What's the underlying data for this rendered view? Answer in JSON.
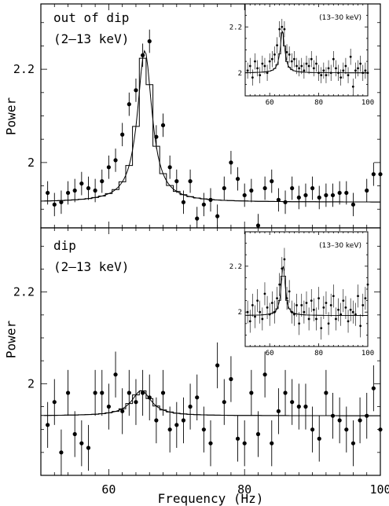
{
  "chart_data": {
    "type": "scatter",
    "xlabel": "Frequency (Hz)",
    "ylabel": "Power",
    "xlim": [
      50,
      100
    ],
    "x_ticks": [
      "60",
      "80",
      "100"
    ],
    "panels": [
      {
        "annotation_line1": "out of dip",
        "annotation_line2": "(2–13 keV)",
        "ylim": [
          1.86,
          2.34
        ],
        "y_ticks": [
          "2",
          "2.2"
        ],
        "ylabel": "Power",
        "x": [
          51,
          52,
          53,
          54,
          55,
          56,
          57,
          58,
          59,
          60,
          61,
          62,
          63,
          64,
          65,
          66,
          67,
          68,
          69,
          70,
          71,
          72,
          73,
          74,
          75,
          76,
          77,
          78,
          79,
          80,
          81,
          82,
          83,
          84,
          85,
          86,
          87,
          88,
          89,
          90,
          91,
          92,
          93,
          94,
          95,
          96,
          97,
          98,
          99,
          100
        ],
        "y": [
          1.935,
          1.91,
          1.915,
          1.935,
          1.94,
          1.955,
          1.945,
          1.94,
          1.96,
          1.99,
          2.005,
          2.06,
          2.125,
          2.155,
          2.23,
          2.26,
          2.055,
          2.08,
          1.99,
          1.96,
          1.915,
          1.96,
          1.88,
          1.91,
          1.92,
          1.885,
          1.945,
          2.0,
          1.965,
          1.93,
          1.94,
          1.865,
          1.945,
          1.96,
          1.92,
          1.915,
          1.945,
          1.925,
          1.93,
          1.945,
          1.925,
          1.93,
          1.93,
          1.935,
          1.935,
          1.91,
          1.855,
          1.94,
          1.975,
          1.975
        ],
        "err": [
          0.025,
          0.025,
          0.025,
          0.025,
          0.025,
          0.025,
          0.025,
          0.025,
          0.025,
          0.025,
          0.025,
          0.025,
          0.025,
          0.025,
          0.025,
          0.025,
          0.025,
          0.025,
          0.025,
          0.025,
          0.025,
          0.025,
          0.025,
          0.025,
          0.025,
          0.025,
          0.025,
          0.025,
          0.025,
          0.025,
          0.025,
          0.025,
          0.025,
          0.025,
          0.025,
          0.025,
          0.025,
          0.025,
          0.025,
          0.025,
          0.025,
          0.025,
          0.025,
          0.025,
          0.025,
          0.025,
          0.025,
          0.025,
          0.025,
          0.025
        ],
        "model": {
          "baseline": 1.915,
          "amp": 0.325,
          "center": 65.3,
          "width": 2.6
        },
        "inset": {
          "label": "(13–30 keV)",
          "xlim": [
            50,
            100
          ],
          "ylim": [
            1.9,
            2.3
          ],
          "x_ticks": [
            "60",
            "80",
            "100"
          ],
          "y_ticks": [
            "2",
            "2.2"
          ],
          "x": [
            51,
            52,
            53,
            54,
            55,
            56,
            57,
            58,
            59,
            60,
            61,
            62,
            63,
            64,
            65,
            66,
            67,
            68,
            69,
            70,
            71,
            72,
            73,
            74,
            75,
            76,
            77,
            78,
            79,
            80,
            81,
            82,
            83,
            84,
            85,
            86,
            87,
            88,
            89,
            90,
            91,
            92,
            93,
            94,
            95,
            96,
            97,
            98,
            99,
            100
          ],
          "y": [
            2.01,
            2.03,
            1.98,
            2.05,
            2.02,
            1.99,
            2.04,
            2.03,
            2.0,
            2.05,
            2.06,
            2.08,
            2.12,
            2.19,
            2.2,
            2.19,
            2.09,
            2.08,
            2.05,
            2.06,
            2.03,
            2.02,
            2.03,
            2.01,
            2.04,
            2.03,
            2.06,
            2.02,
            2.04,
            2.0,
            1.99,
            2.01,
            1.99,
            2.02,
            2.0,
            2.06,
            2.02,
            2.0,
            1.98,
            2.01,
            2.03,
            1.99,
            2.07,
            1.94,
            2.01,
            2.02,
            2.04,
            2.0,
            2.01,
            2.0
          ],
          "err": [
            0.035,
            0.035,
            0.035,
            0.035,
            0.035,
            0.035,
            0.035,
            0.035,
            0.035,
            0.035,
            0.035,
            0.035,
            0.035,
            0.035,
            0.035,
            0.035,
            0.035,
            0.035,
            0.035,
            0.035,
            0.035,
            0.035,
            0.035,
            0.035,
            0.035,
            0.035,
            0.035,
            0.035,
            0.035,
            0.035,
            0.035,
            0.035,
            0.035,
            0.035,
            0.035,
            0.035,
            0.035,
            0.035,
            0.035,
            0.035,
            0.035,
            0.035,
            0.035,
            0.035,
            0.035,
            0.035,
            0.035,
            0.035,
            0.035,
            0.035
          ],
          "model": {
            "baseline": 2.0,
            "amp": 0.18,
            "center": 65.2,
            "width": 2.2
          }
        }
      },
      {
        "annotation_line1": "dip",
        "annotation_line2": "(2–13 keV)",
        "ylim": [
          1.8,
          2.34
        ],
        "y_ticks": [
          "2",
          "2.2"
        ],
        "ylabel": "Power",
        "x": [
          51,
          52,
          53,
          54,
          55,
          56,
          57,
          58,
          59,
          60,
          61,
          62,
          63,
          64,
          65,
          66,
          67,
          68,
          69,
          70,
          71,
          72,
          73,
          74,
          75,
          76,
          77,
          78,
          79,
          80,
          81,
          82,
          83,
          84,
          85,
          86,
          87,
          88,
          89,
          90,
          91,
          92,
          93,
          94,
          95,
          96,
          97,
          98,
          99,
          100
        ],
        "y": [
          1.91,
          1.96,
          1.85,
          1.98,
          1.89,
          1.87,
          1.86,
          1.98,
          1.98,
          1.95,
          2.02,
          1.94,
          1.98,
          1.96,
          1.98,
          1.97,
          1.92,
          1.98,
          1.9,
          1.91,
          1.92,
          1.95,
          1.97,
          1.9,
          1.87,
          2.04,
          1.96,
          2.01,
          1.88,
          1.87,
          1.98,
          1.89,
          2.02,
          1.87,
          1.94,
          1.98,
          1.96,
          1.95,
          1.95,
          1.9,
          1.88,
          1.98,
          1.93,
          1.92,
          1.9,
          1.87,
          1.92,
          1.93,
          1.99,
          1.9
        ],
        "err": [
          0.05,
          0.05,
          0.05,
          0.05,
          0.05,
          0.05,
          0.05,
          0.05,
          0.05,
          0.05,
          0.05,
          0.05,
          0.05,
          0.05,
          0.05,
          0.05,
          0.05,
          0.05,
          0.05,
          0.05,
          0.05,
          0.05,
          0.05,
          0.05,
          0.05,
          0.05,
          0.05,
          0.05,
          0.05,
          0.05,
          0.05,
          0.05,
          0.05,
          0.05,
          0.05,
          0.05,
          0.05,
          0.05,
          0.05,
          0.05,
          0.05,
          0.05,
          0.05,
          0.05,
          0.05,
          0.05,
          0.05,
          0.05,
          0.05,
          0.05
        ],
        "model": {
          "baseline": 1.93,
          "amp": 0.055,
          "center": 64.8,
          "width": 3.5
        },
        "inset": {
          "label": "(13–30 keV)",
          "xlim": [
            50,
            100
          ],
          "ylim": [
            1.85,
            2.35
          ],
          "x_ticks": [
            "60",
            "80",
            "100"
          ],
          "y_ticks": [
            "2",
            "2.2"
          ],
          "x": [
            51,
            52,
            53,
            54,
            55,
            56,
            57,
            58,
            59,
            60,
            61,
            62,
            63,
            64,
            65,
            66,
            67,
            68,
            69,
            70,
            71,
            72,
            73,
            74,
            75,
            76,
            77,
            78,
            79,
            80,
            81,
            82,
            83,
            84,
            85,
            86,
            87,
            88,
            89,
            90,
            91,
            92,
            93,
            94,
            95,
            96,
            97,
            98,
            99,
            100
          ],
          "y": [
            2.0,
            1.96,
            2.03,
            1.98,
            2.05,
            2.0,
            1.97,
            2.08,
            2.02,
            1.99,
            2.04,
            2.0,
            2.06,
            2.12,
            2.19,
            2.23,
            2.06,
            2.09,
            2.0,
            1.99,
            2.03,
            1.95,
            2.03,
            2.0,
            2.04,
            1.97,
            2.05,
            2.01,
            1.97,
            2.06,
            1.93,
            2.02,
            2.04,
            1.95,
            2.03,
            2.07,
            1.97,
            2.01,
            1.99,
            2.05,
            2.02,
            1.96,
            2.01,
            2.0,
            1.99,
            2.07,
            1.94,
            2.03,
            2.06,
            2.12
          ],
          "err": [
            0.05,
            0.05,
            0.05,
            0.05,
            0.05,
            0.05,
            0.05,
            0.05,
            0.05,
            0.05,
            0.05,
            0.05,
            0.05,
            0.05,
            0.05,
            0.05,
            0.05,
            0.05,
            0.05,
            0.05,
            0.05,
            0.05,
            0.05,
            0.05,
            0.05,
            0.05,
            0.05,
            0.05,
            0.05,
            0.05,
            0.05,
            0.05,
            0.05,
            0.05,
            0.05,
            0.05,
            0.05,
            0.05,
            0.05,
            0.05,
            0.05,
            0.05,
            0.05,
            0.05,
            0.05,
            0.05,
            0.05,
            0.05,
            0.05,
            0.05
          ],
          "model": {
            "baseline": 1.985,
            "amp": 0.215,
            "center": 65.5,
            "width": 2.0
          }
        }
      }
    ]
  }
}
